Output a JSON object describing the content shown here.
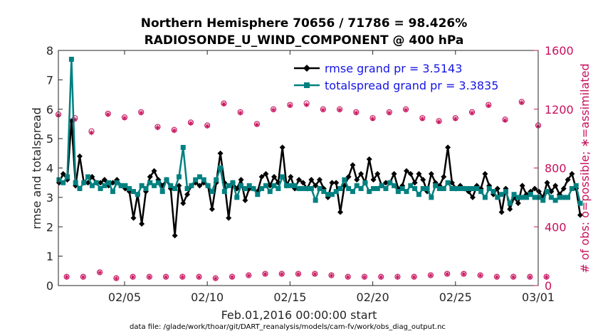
{
  "chart_data": {
    "type": "line",
    "title": "Northern Hemisphere 70656 / 71786 = 98.426%",
    "subtitle": "RADIOSONDE_U_WIND_COMPONENT @ 400 hPa",
    "xlabel": "Feb.01,2016 00:00:00 start",
    "ylabel": "rmse and totalspread",
    "y2label": "# of obs: o=possible; ∗=assimilated",
    "footnote": "data file: /glade/work/thoar/git/DART_reanalysis/models/cam-fv/work/obs_diag_output.nc",
    "xlim": [
      1,
      30
    ],
    "ylim": [
      0,
      8
    ],
    "y2lim": [
      0,
      1600
    ],
    "xticks": [
      {
        "value": 5,
        "label": "02/05"
      },
      {
        "value": 10,
        "label": "02/10"
      },
      {
        "value": 15,
        "label": "02/15"
      },
      {
        "value": 20,
        "label": "02/20"
      },
      {
        "value": 25,
        "label": "02/25"
      },
      {
        "value": 30,
        "label": "03/01"
      }
    ],
    "yticks": [
      "0",
      "1",
      "2",
      "3",
      "4",
      "5",
      "6",
      "7",
      "8"
    ],
    "y2ticks": [
      "0",
      "400",
      "800",
      "1200",
      "1600"
    ],
    "grid": false,
    "legend_position": "top-right",
    "colors": {
      "rmse": "#000000",
      "spread": "#008080",
      "obs": "#c8105c",
      "legend_text": "#1515e6"
    },
    "x_start": 1.04,
    "x_step": 0.25,
    "series": [
      {
        "name": "rmse grand pr = 3.5143",
        "axis": "left",
        "values": [
          3.5,
          3.8,
          3.6,
          5.6,
          3.4,
          4.4,
          3.5,
          3.5,
          3.7,
          3.5,
          3.5,
          3.6,
          3.4,
          3.5,
          3.6,
          3.4,
          3.3,
          3.2,
          2.3,
          3.1,
          2.1,
          3.2,
          3.7,
          3.9,
          3.6,
          3.4,
          3.6,
          3.3,
          1.7,
          3.4,
          2.8,
          3.1,
          3.4,
          3.5,
          3.4,
          3.5,
          3.4,
          2.6,
          3.5,
          4.5,
          3.5,
          2.3,
          3.5,
          3.3,
          3.6,
          2.9,
          3.3,
          3.3,
          3.2,
          3.7,
          3.8,
          3.4,
          3.7,
          3.5,
          4.7,
          3.4,
          3.7,
          3.3,
          3.6,
          3.5,
          3.3,
          3.6,
          3.4,
          3.6,
          3.3,
          3.0,
          3.5,
          3.5,
          2.5,
          3.4,
          3.7,
          4.1,
          3.6,
          3.8,
          3.5,
          4.3,
          3.6,
          3.8,
          3.4,
          3.5,
          3.5,
          3.8,
          3.3,
          3.4,
          3.9,
          3.8,
          3.5,
          3.8,
          3.6,
          3.2,
          3.8,
          3.5,
          3.4,
          3.7,
          4.7,
          3.5,
          3.3,
          3.4,
          3.3,
          3.2,
          3.0,
          3.4,
          3.3,
          3.8,
          3.4,
          3.1,
          3.3,
          2.5,
          3.3,
          2.6,
          3.0,
          2.8,
          3.4,
          3.1,
          3.2,
          3.3,
          3.2,
          3.0,
          3.5,
          3.2,
          3.4,
          3.1,
          3.3,
          3.6,
          3.8,
          3.3,
          2.4
        ]
      },
      {
        "name": "totalspread grand pr = 3.3835",
        "axis": "left",
        "values": [
          3.6,
          3.5,
          3.7,
          7.7,
          3.5,
          3.3,
          3.5,
          3.7,
          3.4,
          3.5,
          3.3,
          3.4,
          3.5,
          3.2,
          3.5,
          3.4,
          3.4,
          3.3,
          3.2,
          3.1,
          3.4,
          3.3,
          3.5,
          3.4,
          3.5,
          3.2,
          3.6,
          3.4,
          3.3,
          3.7,
          4.7,
          3.3,
          3.4,
          3.6,
          3.7,
          3.6,
          3.4,
          3.2,
          3.6,
          4.0,
          3.2,
          3.4,
          3.5,
          3.0,
          3.4,
          3.3,
          3.4,
          3.3,
          3.1,
          3.3,
          3.4,
          3.2,
          3.4,
          3.3,
          3.7,
          3.4,
          3.4,
          3.4,
          3.3,
          3.3,
          3.3,
          3.3,
          2.9,
          3.3,
          3.2,
          3.1,
          3.1,
          3.2,
          3.3,
          3.6,
          3.3,
          3.2,
          3.4,
          3.3,
          3.5,
          3.2,
          3.3,
          3.3,
          3.4,
          3.3,
          3.5,
          3.4,
          3.2,
          3.3,
          3.2,
          3.4,
          3.3,
          3.1,
          3.3,
          3.3,
          3.0,
          3.4,
          3.3,
          3.3,
          3.5,
          3.3,
          3.3,
          3.3,
          3.3,
          3.3,
          3.3,
          3.3,
          3.2,
          3.0,
          3.3,
          3.2,
          3.0,
          3.1,
          3.2,
          2.8,
          3.1,
          3.0,
          3.0,
          3.0,
          3.1,
          3.0,
          3.0,
          2.9,
          3.2,
          3.0,
          2.9,
          3.0,
          3.0,
          3.0,
          3.3,
          3.4,
          2.8
        ]
      },
      {
        "name": "possible",
        "axis": "right",
        "x_start": 1.0,
        "x_step": 0.5,
        "values_00z": [
          1165,
          1140,
          1050,
          1170,
          1145,
          1180,
          1080,
          1060,
          1110,
          1090,
          1240,
          1180,
          1100,
          1200,
          1230,
          1240,
          1200,
          1200,
          1180,
          1140,
          1180,
          1200,
          1140,
          1120,
          1140,
          1180,
          1230,
          1130,
          1250,
          1090
        ],
        "values_12z": [
          60,
          60,
          90,
          50,
          60,
          60,
          60,
          60,
          60,
          50,
          60,
          70,
          80,
          80,
          80,
          80,
          70,
          60,
          60,
          60,
          60,
          60,
          70,
          80,
          80,
          70,
          60,
          60,
          60,
          60
        ]
      },
      {
        "name": "assimilated",
        "axis": "right",
        "x_start": 1.0,
        "x_step": 0.5,
        "values_00z": [
          1160,
          1130,
          1040,
          1165,
          1140,
          1175,
          1075,
          1055,
          1105,
          1085,
          1235,
          1175,
          1095,
          1195,
          1225,
          1230,
          1195,
          1195,
          1175,
          1135,
          1175,
          1195,
          1135,
          1115,
          1135,
          1175,
          1225,
          1125,
          1245,
          1085
        ],
        "values_12z": [
          58,
          58,
          88,
          48,
          58,
          58,
          58,
          58,
          58,
          48,
          58,
          68,
          78,
          78,
          78,
          78,
          68,
          58,
          58,
          58,
          58,
          58,
          68,
          78,
          78,
          68,
          58,
          58,
          58,
          58
        ]
      }
    ]
  }
}
